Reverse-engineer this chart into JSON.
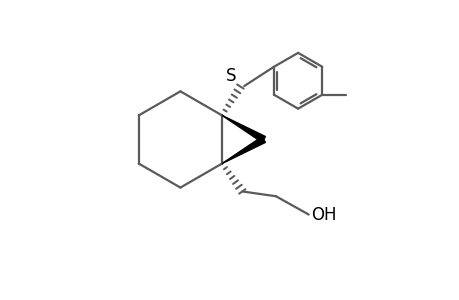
{
  "background": "#ffffff",
  "line_color": "#5a5a5a",
  "black": "#000000",
  "bond_lw": 1.6,
  "figsize": [
    4.6,
    3.0
  ],
  "dpi": 100,
  "S_label": "S",
  "OH_label": "OH",
  "xlim": [
    -2.8,
    4.0
  ],
  "ylim": [
    -2.6,
    2.2
  ]
}
